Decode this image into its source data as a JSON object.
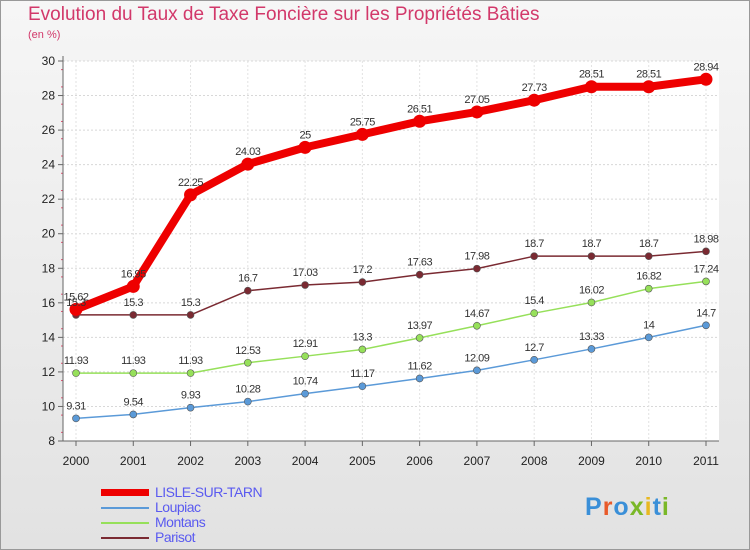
{
  "header": {
    "title": "Evolution du Taux de Taxe Foncière sur les Propriétés Bâties",
    "subtitle": "(en %)"
  },
  "logo": {
    "text": "Proxiti",
    "colors": [
      "#3a8fd8",
      "#e85a2a",
      "#3a8fd8",
      "#7ab828",
      "#e8b820",
      "#3a8fd8",
      "#7ab828"
    ]
  },
  "chart_data": {
    "type": "line",
    "x": [
      "2000",
      "2001",
      "2002",
      "2003",
      "2004",
      "2005",
      "2006",
      "2007",
      "2008",
      "2009",
      "2010",
      "2011"
    ],
    "ylim": [
      8,
      30
    ],
    "yticks": [
      "8",
      "10",
      "12",
      "14",
      "16",
      "18",
      "20",
      "22",
      "24",
      "26",
      "28",
      "30"
    ],
    "grid": true,
    "legend_position": "bottom-left",
    "series": [
      {
        "name": "LISLE-SUR-TARN",
        "color": "#ee0000",
        "values": [
          15.62,
          16.95,
          22.25,
          24.03,
          25,
          25.75,
          26.51,
          27.05,
          27.73,
          28.51,
          28.51,
          28.94
        ],
        "labels": [
          "15.62",
          "16.95",
          "22.25",
          "24.03",
          "25",
          "25.75",
          "26.51",
          "27.05",
          "27.73",
          "28.51",
          "28.51",
          "28.94"
        ]
      },
      {
        "name": "Loupiac",
        "color": "#5b9ad8",
        "values": [
          9.31,
          9.54,
          9.93,
          10.28,
          10.74,
          11.17,
          11.62,
          12.09,
          12.7,
          13.33,
          14,
          14.7
        ],
        "labels": [
          "9.31",
          "9.54",
          "9.93",
          "10.28",
          "10.74",
          "11.17",
          "11.62",
          "12.09",
          "12.7",
          "13.33",
          "14",
          "14.7"
        ]
      },
      {
        "name": "Montans",
        "color": "#96e05a",
        "values": [
          11.93,
          11.93,
          11.93,
          12.53,
          12.91,
          13.3,
          13.97,
          14.67,
          15.4,
          16.02,
          16.82,
          17.24
        ],
        "labels": [
          "11.93",
          "11.93",
          "11.93",
          "12.53",
          "12.91",
          "13.3",
          "13.97",
          "14.67",
          "15.4",
          "16.02",
          "16.82",
          "17.24"
        ]
      },
      {
        "name": "Parisot",
        "color": "#7a2a32",
        "values": [
          15.3,
          15.3,
          15.3,
          16.7,
          17.03,
          17.2,
          17.63,
          17.98,
          18.7,
          18.7,
          18.7,
          18.98
        ],
        "labels": [
          "15.3",
          "15.3",
          "15.3",
          "16.7",
          "17.03",
          "17.2",
          "17.63",
          "17.98",
          "18.7",
          "18.7",
          "18.7",
          "18.98"
        ]
      }
    ]
  }
}
